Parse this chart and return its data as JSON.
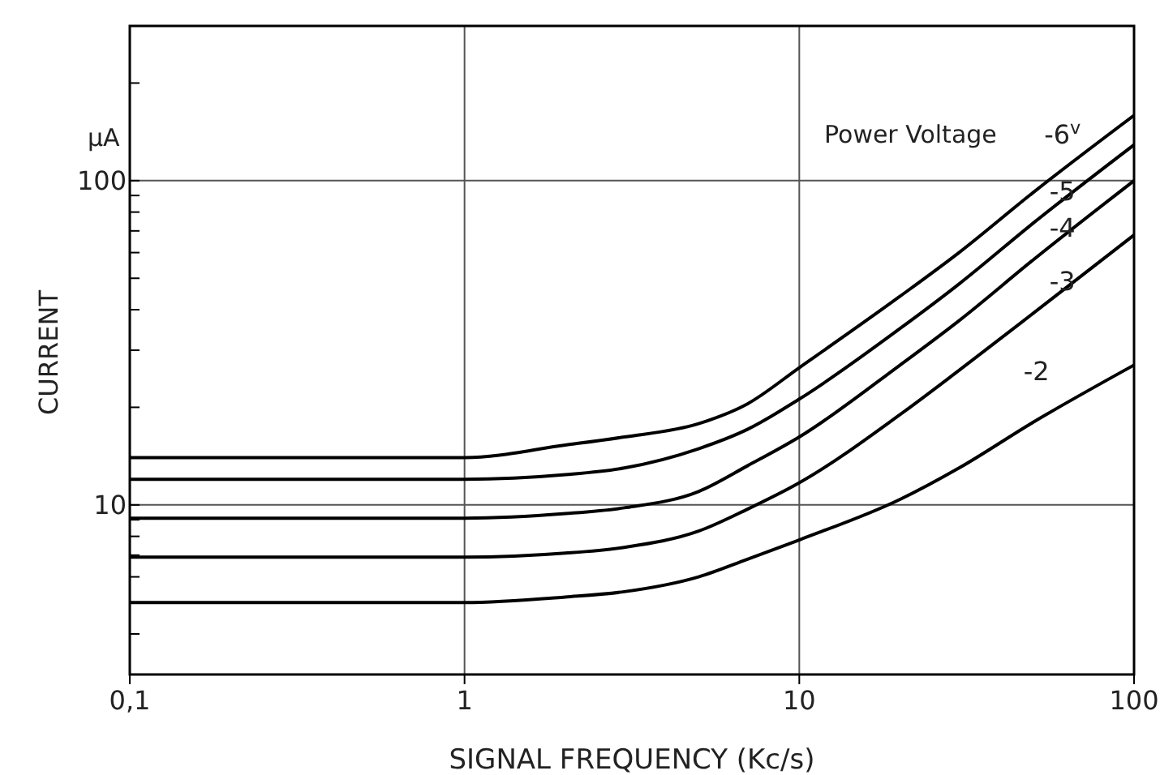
{
  "chart_data": {
    "type": "line",
    "xlabel": "SIGNAL FREQUENCY (Kc/s)",
    "ylabel": "CURRENT",
    "legend_title": "Power Voltage",
    "annotations": [
      "μA"
    ],
    "x": [
      0.1,
      1,
      2,
      3,
      5,
      7,
      10,
      20,
      30,
      50,
      100
    ],
    "series": [
      {
        "name": "-6$^{v}$",
        "color": "#000000",
        "values": [
          14,
          14,
          15.3,
          16.2,
          17.8,
          20.5,
          26.5,
          44,
          60,
          92,
          159
        ]
      },
      {
        "name": "-5",
        "color": "#000000",
        "values": [
          12,
          12,
          12.4,
          13,
          14.9,
          17.1,
          21.2,
          35,
          48,
          74,
          129
        ]
      },
      {
        "name": "-4",
        "color": "#000000",
        "values": [
          9.1,
          9.1,
          9.4,
          9.8,
          11,
          13.2,
          16.2,
          27,
          37,
          57,
          100
        ]
      },
      {
        "name": "-3",
        "color": "#000000",
        "values": [
          6.9,
          6.9,
          7.1,
          7.4,
          8.3,
          9.7,
          11.7,
          19,
          26,
          39,
          68
        ]
      },
      {
        "name": "-2",
        "color": "#000000",
        "values": [
          5,
          5,
          5.2,
          5.4,
          6,
          6.8,
          7.8,
          10.4,
          13,
          18,
          27
        ]
      }
    ],
    "xlim": [
      0.1,
      100
    ],
    "ylim": [
      3,
      300
    ],
    "log": "xy",
    "xticks": [
      {
        "value": 0.1,
        "label": "0,1"
      },
      1,
      10,
      100
    ],
    "yticks": [
      {
        "value": 3,
        "label": null
      },
      {
        "value": 4,
        "label": null
      },
      {
        "value": 5,
        "label": null
      },
      {
        "value": 6,
        "label": null
      },
      {
        "value": 7,
        "label": null
      },
      {
        "value": 8,
        "label": null
      },
      {
        "value": 9,
        "label": null
      },
      10,
      {
        "value": 20,
        "label": null
      },
      {
        "value": 30,
        "label": null
      },
      {
        "value": 40,
        "label": null
      },
      {
        "value": 50,
        "label": null
      },
      {
        "value": 60,
        "label": null
      },
      {
        "value": 70,
        "label": null
      },
      {
        "value": 80,
        "label": null
      },
      {
        "value": 90,
        "label": null
      },
      100,
      {
        "value": 200,
        "label": null
      },
      {
        "value": 300,
        "label": null
      }
    ],
    "grid": true,
    "legend": false,
    "marker": "none",
    "line_style": "solid"
  }
}
